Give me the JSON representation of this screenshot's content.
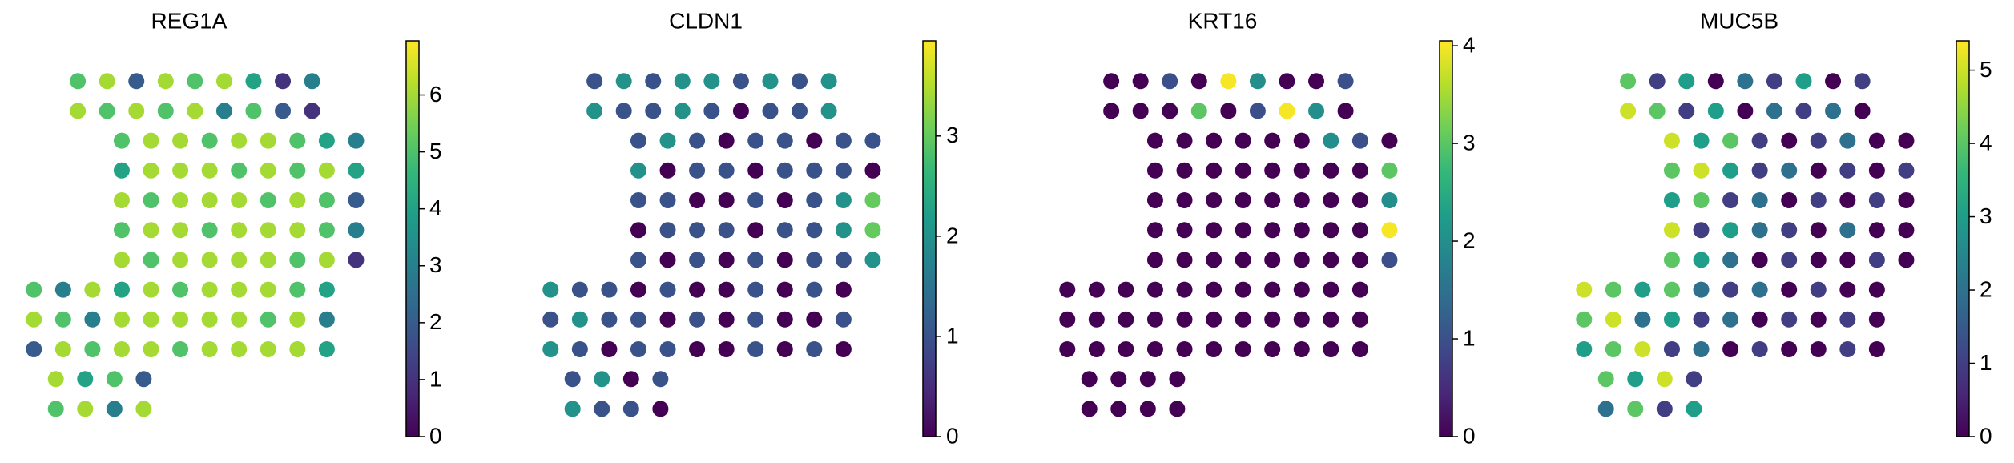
{
  "chart_data": [
    {
      "type": "scatter",
      "title": "REG1A",
      "colormap": "viridis",
      "xlim": [
        0,
        100
      ],
      "ylim": [
        0,
        100
      ],
      "x": [
        16,
        24,
        32,
        40,
        48,
        56,
        64,
        72,
        80,
        16,
        24,
        32,
        40,
        48,
        56,
        64,
        72,
        80,
        28,
        36,
        44,
        52,
        60,
        68,
        76,
        84,
        92,
        28,
        36,
        44,
        52,
        60,
        68,
        76,
        84,
        92,
        28,
        36,
        44,
        52,
        60,
        68,
        76,
        84,
        92,
        28,
        36,
        44,
        52,
        60,
        68,
        76,
        84,
        92,
        28,
        36,
        44,
        52,
        60,
        68,
        76,
        84,
        92,
        4,
        12,
        20,
        28,
        36,
        44,
        52,
        60,
        68,
        76,
        84,
        4,
        12,
        20,
        28,
        36,
        44,
        52,
        60,
        68,
        76,
        84,
        4,
        12,
        20,
        28,
        36,
        44,
        52,
        60,
        68,
        76,
        84,
        10,
        18,
        26,
        34,
        10,
        18,
        26,
        34
      ],
      "y": [
        92,
        92,
        92,
        92,
        92,
        92,
        92,
        92,
        92,
        84,
        84,
        84,
        84,
        84,
        84,
        84,
        84,
        84,
        76,
        76,
        76,
        76,
        76,
        76,
        76,
        76,
        76,
        68,
        68,
        68,
        68,
        68,
        68,
        68,
        68,
        68,
        60,
        60,
        60,
        60,
        60,
        60,
        60,
        60,
        60,
        52,
        52,
        52,
        52,
        52,
        52,
        52,
        52,
        52,
        44,
        44,
        44,
        44,
        44,
        44,
        44,
        44,
        44,
        36,
        36,
        36,
        36,
        36,
        36,
        36,
        36,
        36,
        36,
        36,
        28,
        28,
        28,
        28,
        28,
        28,
        28,
        28,
        28,
        28,
        28,
        20,
        20,
        20,
        20,
        20,
        20,
        20,
        20,
        20,
        20,
        20,
        12,
        12,
        12,
        12,
        4,
        4,
        4,
        4
      ],
      "values": [
        5,
        6,
        2,
        6,
        5,
        6,
        4,
        1,
        3,
        6,
        5,
        6,
        5,
        6,
        3,
        5,
        2,
        1,
        5,
        6,
        6,
        5,
        6,
        6,
        5,
        4,
        3,
        4,
        6,
        6,
        6,
        5,
        6,
        5,
        6,
        4,
        6,
        5,
        6,
        6,
        6,
        5,
        6,
        5,
        2,
        5,
        6,
        6,
        5,
        6,
        6,
        6,
        5,
        3,
        6,
        5,
        6,
        6,
        6,
        6,
        5,
        6,
        1,
        5,
        3,
        6,
        4,
        6,
        5,
        6,
        6,
        6,
        5,
        4,
        6,
        5,
        3,
        6,
        6,
        6,
        6,
        6,
        5,
        6,
        3,
        2,
        6,
        5,
        6,
        6,
        5,
        6,
        6,
        6,
        6,
        4,
        6,
        4,
        5,
        2,
        5,
        6,
        3,
        6
      ],
      "colorbar_lim": [
        0,
        6.95
      ],
      "colorbar_ticks": [
        0,
        1,
        2,
        3,
        4,
        5,
        6
      ]
    },
    {
      "type": "scatter",
      "title": "CLDN1",
      "colormap": "viridis",
      "xlim": [
        0,
        100
      ],
      "ylim": [
        0,
        100
      ],
      "x": [
        16,
        24,
        32,
        40,
        48,
        56,
        64,
        72,
        80,
        16,
        24,
        32,
        40,
        48,
        56,
        64,
        72,
        80,
        28,
        36,
        44,
        52,
        60,
        68,
        76,
        84,
        92,
        28,
        36,
        44,
        52,
        60,
        68,
        76,
        84,
        92,
        28,
        36,
        44,
        52,
        60,
        68,
        76,
        84,
        92,
        28,
        36,
        44,
        52,
        60,
        68,
        76,
        84,
        92,
        28,
        36,
        44,
        52,
        60,
        68,
        76,
        84,
        92,
        4,
        12,
        20,
        28,
        36,
        44,
        52,
        60,
        68,
        76,
        84,
        4,
        12,
        20,
        28,
        36,
        44,
        52,
        60,
        68,
        76,
        84,
        4,
        12,
        20,
        28,
        36,
        44,
        52,
        60,
        68,
        76,
        84,
        10,
        18,
        26,
        34,
        10,
        18,
        26,
        34
      ],
      "y": [
        92,
        92,
        92,
        92,
        92,
        92,
        92,
        92,
        92,
        84,
        84,
        84,
        84,
        84,
        84,
        84,
        84,
        84,
        76,
        76,
        76,
        76,
        76,
        76,
        76,
        76,
        76,
        68,
        68,
        68,
        68,
        68,
        68,
        68,
        68,
        68,
        60,
        60,
        60,
        60,
        60,
        60,
        60,
        60,
        60,
        52,
        52,
        52,
        52,
        52,
        52,
        52,
        52,
        52,
        44,
        44,
        44,
        44,
        44,
        44,
        44,
        44,
        44,
        36,
        36,
        36,
        36,
        36,
        36,
        36,
        36,
        36,
        36,
        36,
        28,
        28,
        28,
        28,
        28,
        28,
        28,
        28,
        28,
        28,
        28,
        20,
        20,
        20,
        20,
        20,
        20,
        20,
        20,
        20,
        20,
        20,
        12,
        12,
        12,
        12,
        4,
        4,
        4,
        4
      ],
      "values": [
        1,
        2,
        1,
        2,
        2,
        1,
        2,
        1,
        2,
        2,
        1,
        1,
        2,
        1,
        0,
        1,
        1,
        2,
        1,
        2,
        1,
        0,
        1,
        1,
        0,
        1,
        1,
        2,
        0,
        1,
        1,
        0,
        1,
        1,
        1,
        0,
        1,
        1,
        0,
        0,
        1,
        0,
        1,
        2,
        3,
        0,
        1,
        1,
        1,
        0,
        1,
        1,
        2,
        3,
        1,
        0,
        1,
        0,
        1,
        0,
        1,
        1,
        2,
        2,
        1,
        1,
        0,
        1,
        0,
        0,
        1,
        0,
        1,
        0,
        1,
        2,
        1,
        1,
        0,
        1,
        0,
        1,
        0,
        0,
        1,
        2,
        1,
        0,
        1,
        1,
        0,
        0,
        1,
        0,
        1,
        0,
        1,
        2,
        0,
        1,
        2,
        1,
        1,
        0
      ],
      "colorbar_lim": [
        0,
        3.95
      ],
      "colorbar_ticks": [
        0,
        1,
        2,
        3
      ]
    },
    {
      "type": "scatter",
      "title": "KRT16",
      "colormap": "viridis",
      "xlim": [
        0,
        100
      ],
      "ylim": [
        0,
        100
      ],
      "x": [
        16,
        24,
        32,
        40,
        48,
        56,
        64,
        72,
        80,
        16,
        24,
        32,
        40,
        48,
        56,
        64,
        72,
        80,
        28,
        36,
        44,
        52,
        60,
        68,
        76,
        84,
        92,
        28,
        36,
        44,
        52,
        60,
        68,
        76,
        84,
        92,
        28,
        36,
        44,
        52,
        60,
        68,
        76,
        84,
        92,
        28,
        36,
        44,
        52,
        60,
        68,
        76,
        84,
        92,
        28,
        36,
        44,
        52,
        60,
        68,
        76,
        84,
        92,
        4,
        12,
        20,
        28,
        36,
        44,
        52,
        60,
        68,
        76,
        84,
        4,
        12,
        20,
        28,
        36,
        44,
        52,
        60,
        68,
        76,
        84,
        4,
        12,
        20,
        28,
        36,
        44,
        52,
        60,
        68,
        76,
        84,
        10,
        18,
        26,
        34,
        10,
        18,
        26,
        34
      ],
      "y": [
        92,
        92,
        92,
        92,
        92,
        92,
        92,
        92,
        92,
        84,
        84,
        84,
        84,
        84,
        84,
        84,
        84,
        84,
        76,
        76,
        76,
        76,
        76,
        76,
        76,
        76,
        76,
        68,
        68,
        68,
        68,
        68,
        68,
        68,
        68,
        68,
        60,
        60,
        60,
        60,
        60,
        60,
        60,
        60,
        60,
        52,
        52,
        52,
        52,
        52,
        52,
        52,
        52,
        52,
        44,
        44,
        44,
        44,
        44,
        44,
        44,
        44,
        44,
        36,
        36,
        36,
        36,
        36,
        36,
        36,
        36,
        36,
        36,
        36,
        28,
        28,
        28,
        28,
        28,
        28,
        28,
        28,
        28,
        28,
        28,
        20,
        20,
        20,
        20,
        20,
        20,
        20,
        20,
        20,
        20,
        20,
        12,
        12,
        12,
        12,
        4,
        4,
        4,
        4
      ],
      "values": [
        0,
        0,
        1,
        0,
        4,
        2,
        0,
        0,
        1,
        0,
        0,
        0,
        3,
        0,
        1,
        4,
        2,
        0,
        0,
        0,
        0,
        0,
        0,
        0,
        2,
        1,
        0,
        0,
        0,
        0,
        0,
        0,
        0,
        0,
        0,
        3,
        0,
        0,
        0,
        0,
        0,
        0,
        0,
        0,
        2,
        0,
        0,
        0,
        0,
        0,
        0,
        0,
        0,
        4,
        0,
        0,
        0,
        0,
        0,
        0,
        0,
        0,
        1,
        0,
        0,
        0,
        0,
        0,
        0,
        0,
        0,
        0,
        0,
        0,
        0,
        0,
        0,
        0,
        0,
        0,
        0,
        0,
        0,
        0,
        0,
        0,
        0,
        0,
        0,
        0,
        0,
        0,
        0,
        0,
        0,
        0,
        0,
        0,
        0,
        0,
        0,
        0,
        0,
        0
      ],
      "colorbar_lim": [
        0,
        4.05
      ],
      "colorbar_ticks": [
        0,
        1,
        2,
        3,
        4
      ]
    },
    {
      "type": "scatter",
      "title": "MUC5B",
      "colormap": "viridis",
      "xlim": [
        0,
        100
      ],
      "ylim": [
        0,
        100
      ],
      "x": [
        16,
        24,
        32,
        40,
        48,
        56,
        64,
        72,
        80,
        16,
        24,
        32,
        40,
        48,
        56,
        64,
        72,
        80,
        28,
        36,
        44,
        52,
        60,
        68,
        76,
        84,
        92,
        28,
        36,
        44,
        52,
        60,
        68,
        76,
        84,
        92,
        28,
        36,
        44,
        52,
        60,
        68,
        76,
        84,
        92,
        28,
        36,
        44,
        52,
        60,
        68,
        76,
        84,
        92,
        28,
        36,
        44,
        52,
        60,
        68,
        76,
        84,
        92,
        4,
        12,
        20,
        28,
        36,
        44,
        52,
        60,
        68,
        76,
        84,
        4,
        12,
        20,
        28,
        36,
        44,
        52,
        60,
        68,
        76,
        84,
        4,
        12,
        20,
        28,
        36,
        44,
        52,
        60,
        68,
        76,
        84,
        10,
        18,
        26,
        34,
        10,
        18,
        26,
        34
      ],
      "y": [
        92,
        92,
        92,
        92,
        92,
        92,
        92,
        92,
        92,
        84,
        84,
        84,
        84,
        84,
        84,
        84,
        84,
        84,
        76,
        76,
        76,
        76,
        76,
        76,
        76,
        76,
        76,
        68,
        68,
        68,
        68,
        68,
        68,
        68,
        68,
        68,
        60,
        60,
        60,
        60,
        60,
        60,
        60,
        60,
        60,
        52,
        52,
        52,
        52,
        52,
        52,
        52,
        52,
        52,
        44,
        44,
        44,
        44,
        44,
        44,
        44,
        44,
        44,
        36,
        36,
        36,
        36,
        36,
        36,
        36,
        36,
        36,
        36,
        36,
        28,
        28,
        28,
        28,
        28,
        28,
        28,
        28,
        28,
        28,
        28,
        20,
        20,
        20,
        20,
        20,
        20,
        20,
        20,
        20,
        20,
        20,
        12,
        12,
        12,
        12,
        4,
        4,
        4,
        4
      ],
      "values": [
        4,
        1,
        3,
        0,
        2,
        1,
        3,
        0,
        1,
        5,
        4,
        1,
        3,
        0,
        2,
        1,
        2,
        0,
        5,
        3,
        4,
        1,
        0,
        1,
        2,
        0,
        0,
        4,
        5,
        3,
        1,
        2,
        0,
        1,
        0,
        1,
        3,
        4,
        1,
        2,
        0,
        1,
        0,
        1,
        0,
        5,
        1,
        3,
        2,
        1,
        0,
        2,
        0,
        0,
        4,
        3,
        2,
        0,
        1,
        0,
        0,
        1,
        0,
        5,
        4,
        3,
        4,
        2,
        1,
        2,
        0,
        1,
        0,
        0,
        4,
        5,
        2,
        3,
        1,
        2,
        0,
        1,
        0,
        1,
        0,
        3,
        4,
        5,
        1,
        2,
        0,
        1,
        0,
        0,
        1,
        0,
        4,
        3,
        5,
        1,
        2,
        4,
        1,
        3
      ],
      "colorbar_lim": [
        0,
        5.4
      ],
      "colorbar_ticks": [
        0,
        1,
        2,
        3,
        4,
        5
      ]
    }
  ]
}
